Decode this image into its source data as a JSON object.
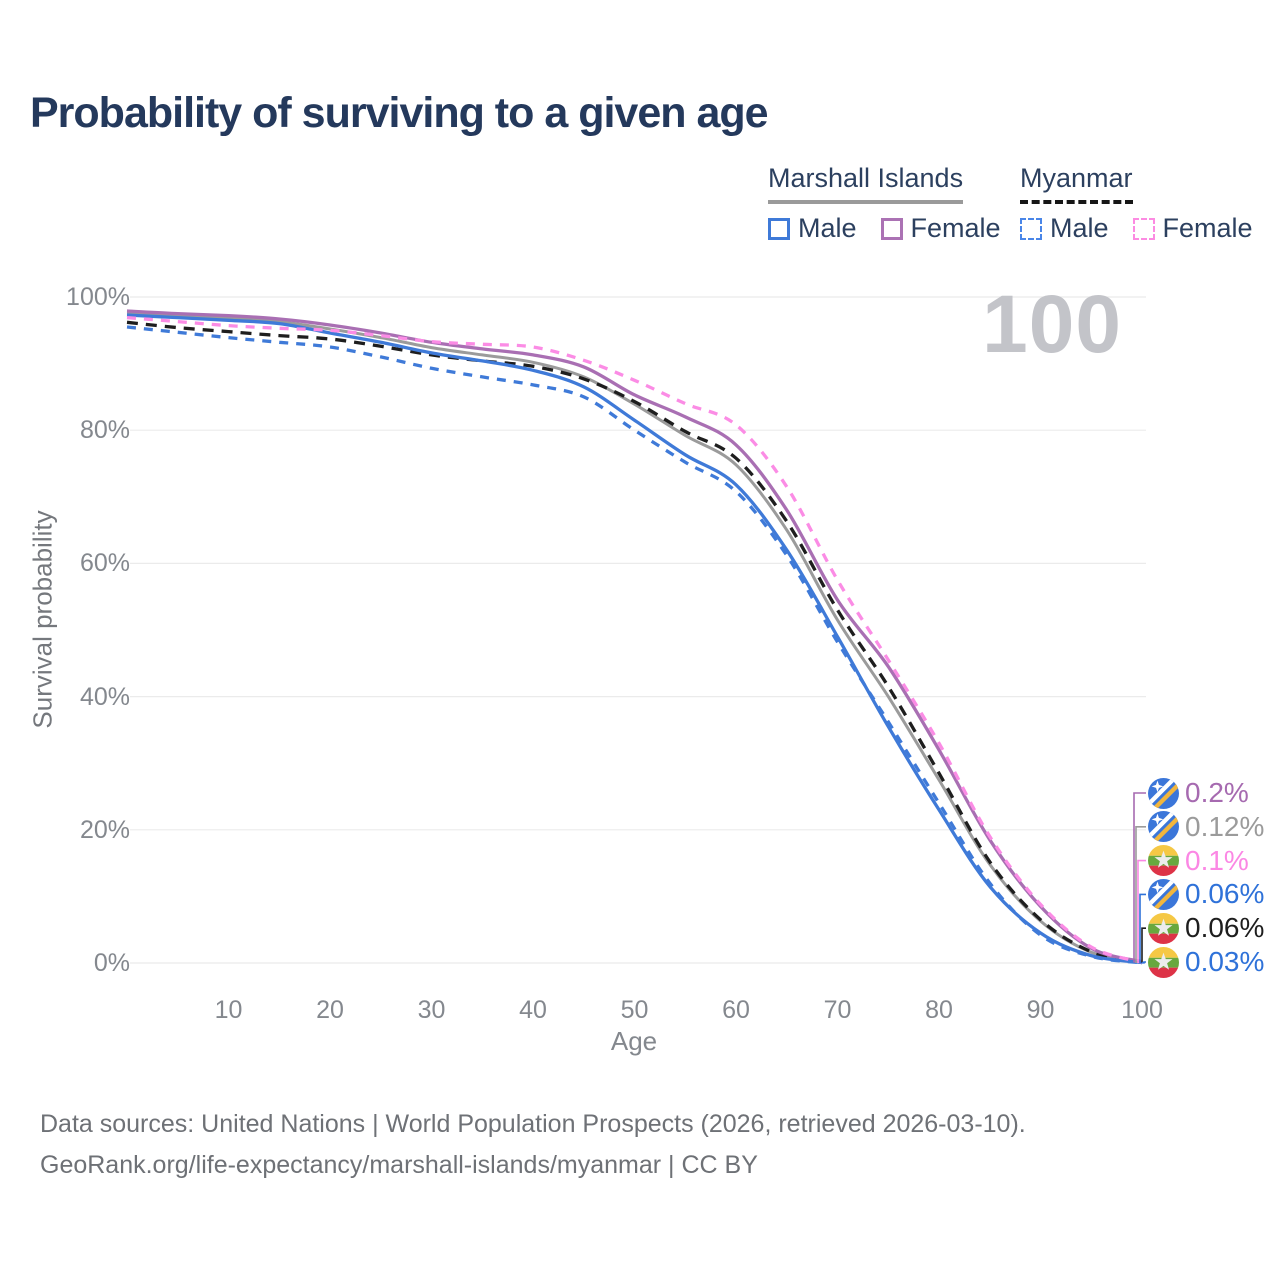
{
  "title": "Probability of surviving to a given age",
  "watermark_age": "100",
  "legend": {
    "groups": [
      {
        "name": "Marshall Islands",
        "line_style": "solid",
        "underline_color": "#9a9a9a",
        "items": [
          {
            "label": "Male",
            "color": "#3f7ad8"
          },
          {
            "label": "Female",
            "color": "#ab72b4"
          }
        ]
      },
      {
        "name": "Myanmar",
        "line_style": "dashed",
        "underline_color": "#161616",
        "items": [
          {
            "label": "Male",
            "color": "#4a86e8"
          },
          {
            "label": "Female",
            "color": "#fc8be2"
          }
        ]
      }
    ]
  },
  "axes": {
    "y": {
      "title": "Survival probability",
      "ticks": [
        {
          "label": "100%",
          "value": 100
        },
        {
          "label": "80%",
          "value": 80
        },
        {
          "label": "60%",
          "value": 60
        },
        {
          "label": "40%",
          "value": 40
        },
        {
          "label": "20%",
          "value": 20
        },
        {
          "label": "0%",
          "value": 0
        }
      ]
    },
    "x": {
      "title": "Age",
      "ticks": [
        {
          "label": "10",
          "value": 10
        },
        {
          "label": "20",
          "value": 20
        },
        {
          "label": "30",
          "value": 30
        },
        {
          "label": "40",
          "value": 40
        },
        {
          "label": "50",
          "value": 50
        },
        {
          "label": "60",
          "value": 60
        },
        {
          "label": "70",
          "value": 70
        },
        {
          "label": "80",
          "value": 80
        },
        {
          "label": "90",
          "value": 90
        },
        {
          "label": "100",
          "value": 100
        }
      ]
    }
  },
  "end_labels": [
    {
      "flag": "marshall-islands",
      "text": "0.2%",
      "color": "#a66ab0",
      "series": "Marshall Islands - Female"
    },
    {
      "flag": "marshall-islands",
      "text": "0.12%",
      "color": "#9b9b9b",
      "series": "Marshall Islands - Both sexes"
    },
    {
      "flag": "myanmar",
      "text": "0.1%",
      "color": "#fb87e4",
      "series": "Myanmar - Female"
    },
    {
      "flag": "marshall-islands",
      "text": "0.06%",
      "color": "#2f72d9",
      "series": "Marshall Islands - Male"
    },
    {
      "flag": "myanmar",
      "text": "0.06%",
      "color": "#1e1e1e",
      "series": "Myanmar - Both sexes"
    },
    {
      "flag": "myanmar",
      "text": "0.03%",
      "color": "#2f72d9",
      "series": "Myanmar - Male"
    }
  ],
  "footer": {
    "line1": "Data sources: United Nations | World Population Prospects (2026, retrieved 2026-03-10).",
    "line2": "GeoRank.org/life-expectancy/marshall-islands/myanmar | CC BY"
  },
  "chart_data": {
    "type": "line",
    "title": "Probability of surviving to a given age",
    "xlabel": "Age",
    "ylabel": "Survival probability",
    "xlim": [
      0,
      100
    ],
    "ylim": [
      0,
      100
    ],
    "grid": "horizontal",
    "legend_position": "top-right",
    "x": [
      0,
      5,
      10,
      15,
      20,
      25,
      30,
      35,
      40,
      45,
      50,
      55,
      60,
      65,
      70,
      75,
      80,
      85,
      90,
      95,
      100
    ],
    "series": [
      {
        "name": "Marshall Islands - Both sexes",
        "color": "#9b9b9b",
        "dash": "solid",
        "values": [
          97.6,
          97.2,
          96.8,
          96.3,
          95.2,
          93.9,
          92.4,
          91.3,
          90.2,
          88.0,
          83.9,
          79.2,
          74.8,
          65.0,
          51.5,
          40.0,
          27.5,
          14.8,
          6.3,
          1.6,
          0.12
        ]
      },
      {
        "name": "Myanmar - Both sexes",
        "color": "#1e1e1e",
        "dash": "dashed",
        "values": [
          96.2,
          95.4,
          94.8,
          94.2,
          93.7,
          92.6,
          91.3,
          90.4,
          89.6,
          87.7,
          84.3,
          79.8,
          75.8,
          66.3,
          53.0,
          41.5,
          28.5,
          15.2,
          6.5,
          1.7,
          0.06
        ]
      },
      {
        "name": "Marshall Islands - Female",
        "color": "#a96fb3",
        "dash": "solid",
        "values": [
          97.9,
          97.5,
          97.2,
          96.7,
          95.8,
          94.6,
          93.2,
          92.2,
          91.3,
          89.5,
          85.3,
          82.0,
          77.8,
          68.0,
          54.5,
          44.5,
          32.0,
          18.5,
          8.5,
          2.2,
          0.2
        ]
      },
      {
        "name": "Marshall Islands - Male",
        "color": "#3f7ad8",
        "dash": "solid",
        "values": [
          97.3,
          96.9,
          96.5,
          96.0,
          94.6,
          93.2,
          91.6,
          90.4,
          89.0,
          86.5,
          81.5,
          76.3,
          71.8,
          62.0,
          49.0,
          35.5,
          23.0,
          11.5,
          4.5,
          1.1,
          0.06
        ]
      },
      {
        "name": "Myanmar - Male",
        "color": "#3f7ad8",
        "dash": "dashed",
        "values": [
          95.5,
          94.7,
          93.9,
          93.2,
          92.5,
          91.0,
          89.3,
          88.0,
          86.8,
          85.0,
          80.0,
          75.2,
          70.8,
          61.2,
          48.2,
          36.2,
          24.0,
          12.0,
          4.2,
          1.0,
          0.03
        ]
      },
      {
        "name": "Myanmar - Female",
        "color": "#fb8ce5",
        "dash": "dashed",
        "values": [
          96.9,
          96.3,
          95.7,
          95.3,
          95.0,
          94.2,
          93.3,
          92.9,
          92.5,
          90.5,
          87.5,
          84.0,
          80.8,
          71.5,
          57.5,
          45.5,
          33.0,
          19.0,
          8.8,
          2.4,
          0.1
        ]
      }
    ]
  }
}
